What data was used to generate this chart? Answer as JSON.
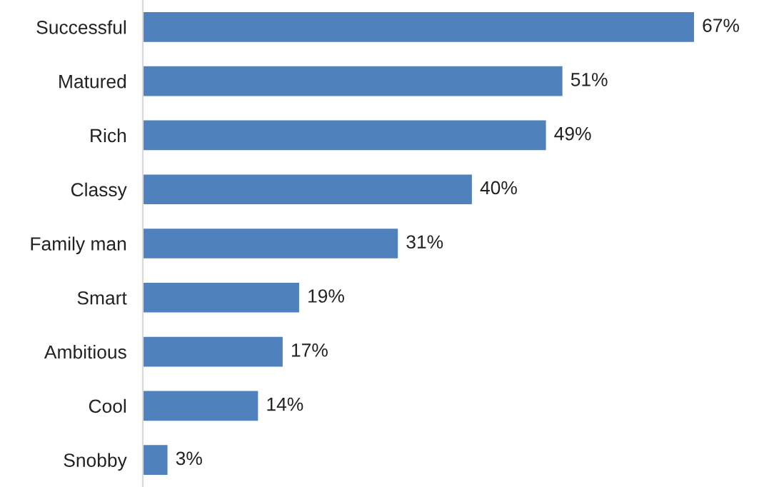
{
  "chart_data": {
    "type": "bar",
    "orientation": "horizontal",
    "categories": [
      "Successful",
      "Matured",
      "Rich",
      "Classy",
      "Family man",
      "Smart",
      "Ambitious",
      "Cool",
      "Snobby"
    ],
    "values": [
      67,
      51,
      49,
      40,
      31,
      19,
      17,
      14,
      3
    ],
    "value_labels": [
      "67%",
      "51%",
      "49%",
      "40%",
      "31%",
      "19%",
      "17%",
      "14%",
      "3%"
    ],
    "color": "#4f81bd",
    "grid": false,
    "legend": false
  }
}
